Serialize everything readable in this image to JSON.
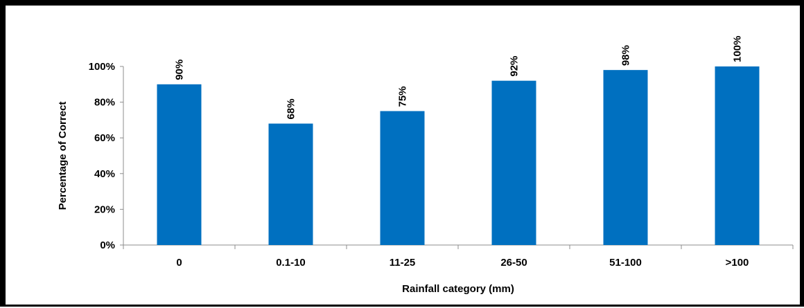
{
  "chart_data": {
    "type": "bar",
    "title": "",
    "xlabel": "Rainfall category (mm)",
    "ylabel": "Percentage of Correct",
    "categories": [
      "0",
      "0.1-10",
      "11-25",
      "26-50",
      "51-100",
      ">100"
    ],
    "values": [
      90,
      68,
      75,
      92,
      98,
      100
    ],
    "data_labels": [
      "90%",
      "68%",
      "75%",
      "92%",
      "98%",
      "100%"
    ],
    "ylim": [
      0,
      100
    ],
    "yticks": [
      0,
      20,
      40,
      60,
      80,
      100
    ],
    "ytick_labels": [
      "0%",
      "20%",
      "40%",
      "60%",
      "80%",
      "100%"
    ],
    "grid": false,
    "legend": "none",
    "bar_color": "#0070C0"
  }
}
